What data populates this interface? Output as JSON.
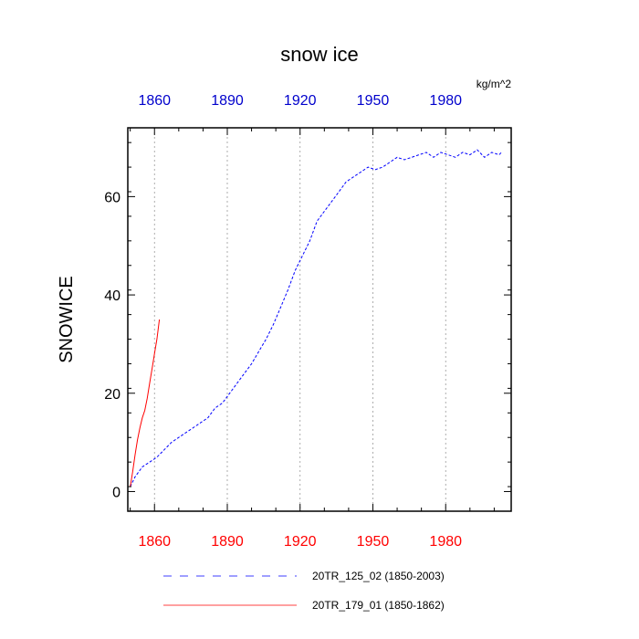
{
  "chart_data": {
    "type": "line",
    "title": "snow ice",
    "units": "kg/m^2",
    "ylabel": "SNOWICE",
    "xlabel": "",
    "xlim": [
      1849,
      2007
    ],
    "ylim": [
      -4,
      74
    ],
    "x_ticks": [
      1860,
      1890,
      1920,
      1950,
      1980
    ],
    "x_tick_labels": [
      "1860",
      "1890",
      "1920",
      "1950",
      "1980"
    ],
    "y_ticks": [
      0,
      20,
      40,
      60
    ],
    "y_tick_labels": [
      "0",
      "20",
      "40",
      "60"
    ],
    "vertical_grid": true,
    "legend_position": "bottom",
    "series": [
      {
        "name": "20TR_125_02 (1850-2003)",
        "color": "#0000ff",
        "dash": "dashed",
        "x": [
          1850,
          1852,
          1855,
          1858,
          1861,
          1864,
          1867,
          1870,
          1873,
          1876,
          1879,
          1882,
          1885,
          1888,
          1891,
          1894,
          1897,
          1900,
          1903,
          1906,
          1909,
          1912,
          1915,
          1918,
          1921,
          1924,
          1927,
          1930,
          1933,
          1936,
          1939,
          1942,
          1945,
          1948,
          1951,
          1954,
          1957,
          1960,
          1963,
          1966,
          1969,
          1972,
          1975,
          1978,
          1981,
          1984,
          1987,
          1990,
          1993,
          1996,
          1999,
          2002,
          2003
        ],
        "y": [
          1,
          3,
          5,
          6,
          7,
          8.5,
          10,
          11,
          12,
          13,
          14,
          15,
          17,
          18,
          20,
          22,
          24,
          26,
          28.5,
          31,
          34,
          37.5,
          41,
          45,
          48,
          51,
          55,
          57,
          59,
          61,
          63,
          64,
          65,
          66,
          65.5,
          66,
          67,
          68,
          67.5,
          68,
          68.5,
          69,
          68,
          69,
          68.5,
          68,
          69,
          68.5,
          69.5,
          68,
          69,
          68.5,
          69
        ]
      },
      {
        "name": "20TR_179_01 (1850-1862)",
        "color": "#ff0000",
        "dash": "solid",
        "x": [
          1850,
          1851,
          1852,
          1853,
          1854,
          1855,
          1856,
          1857,
          1858,
          1859,
          1860,
          1861,
          1862
        ],
        "y": [
          1,
          4,
          7.5,
          10.5,
          13,
          15,
          16.5,
          19,
          22,
          25,
          28,
          31,
          35
        ]
      }
    ]
  }
}
